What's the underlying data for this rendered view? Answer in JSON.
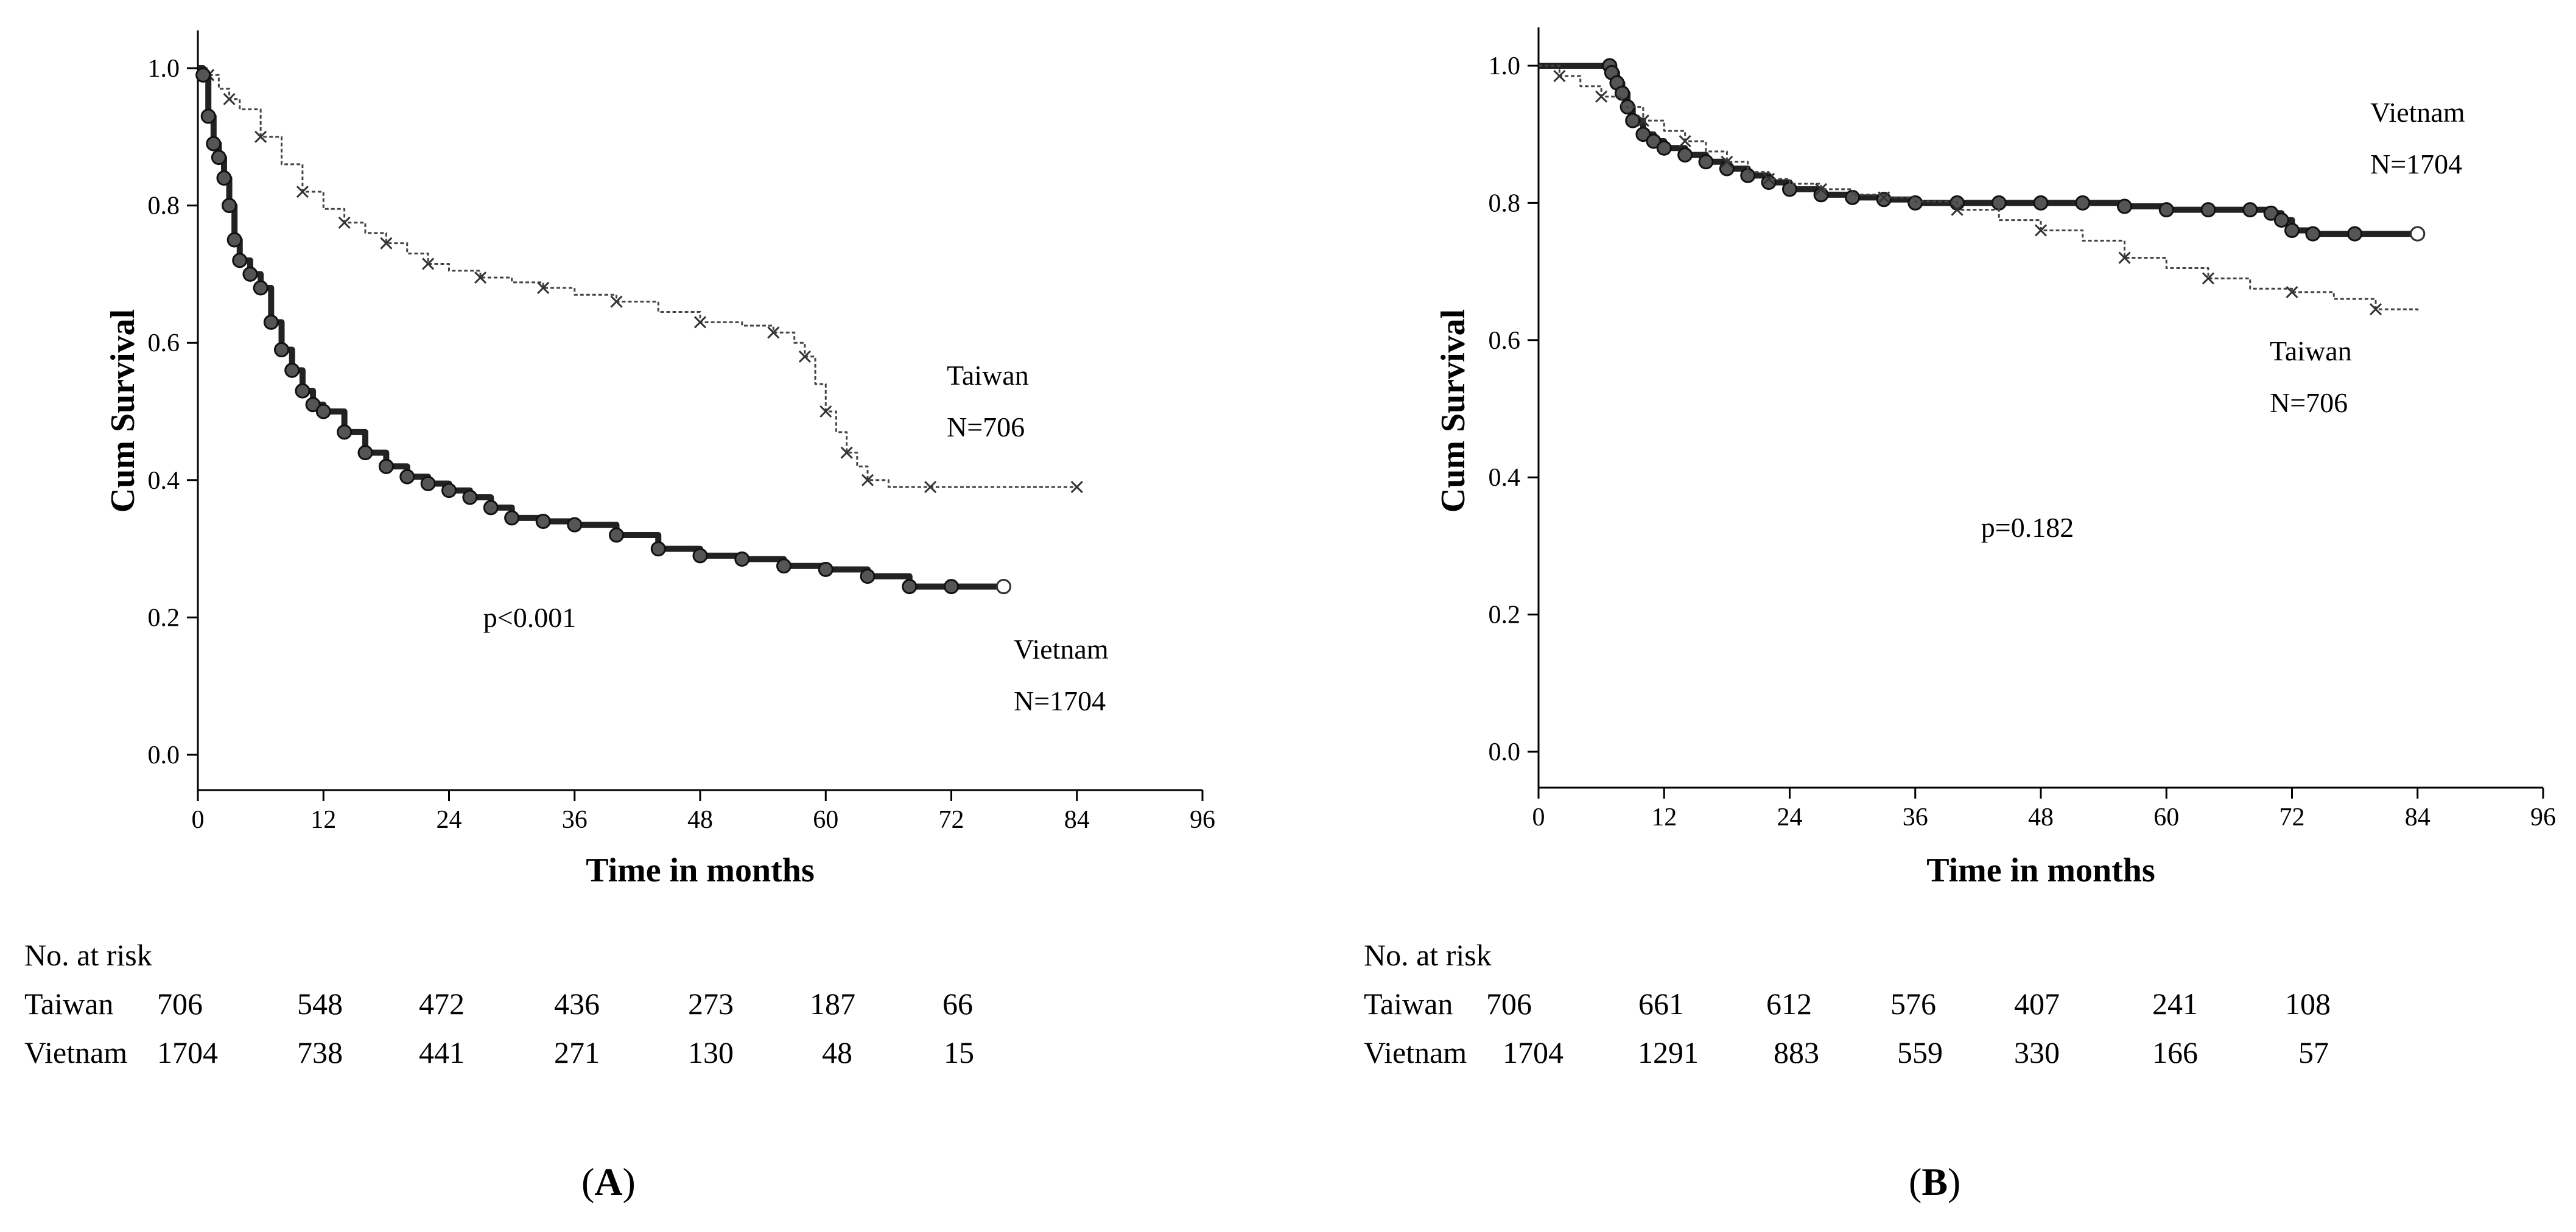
{
  "chart_data": [
    {
      "type": "line",
      "panel_label": "A",
      "xlabel": "Time in months",
      "ylabel": "Cum Survival",
      "xlim": [
        0,
        96
      ],
      "ylim": [
        0.0,
        1.0
      ],
      "xticks": [
        0,
        12,
        24,
        36,
        48,
        60,
        72,
        84,
        96
      ],
      "yticks": [
        "0.0",
        "0.2",
        "0.4",
        "0.6",
        "0.8",
        "1.0"
      ],
      "annotation": "p<0.001",
      "series": [
        {
          "name": "Taiwan",
          "n_label": "N=706",
          "style": "thin-cross",
          "x": [
            0,
            1,
            2,
            3,
            4,
            6,
            8,
            10,
            12,
            14,
            16,
            18,
            20,
            22,
            24,
            27,
            30,
            33,
            36,
            40,
            44,
            48,
            52,
            55,
            57,
            58,
            59,
            60,
            61,
            62,
            63,
            64,
            66,
            70,
            76,
            84
          ],
          "y": [
            1.0,
            0.99,
            0.97,
            0.955,
            0.94,
            0.9,
            0.86,
            0.82,
            0.795,
            0.775,
            0.76,
            0.745,
            0.73,
            0.715,
            0.705,
            0.695,
            0.688,
            0.68,
            0.67,
            0.66,
            0.645,
            0.63,
            0.625,
            0.615,
            0.6,
            0.58,
            0.54,
            0.5,
            0.47,
            0.44,
            0.42,
            0.4,
            0.39,
            0.39,
            0.39,
            0.39
          ]
        },
        {
          "name": "Vietnam",
          "n_label": "N=1704",
          "style": "thick-circle",
          "x": [
            0,
            0.5,
            1,
            1.5,
            2,
            2.5,
            3,
            3.5,
            4,
            5,
            6,
            7,
            8,
            9,
            10,
            11,
            12,
            14,
            16,
            18,
            20,
            22,
            24,
            26,
            28,
            30,
            33,
            36,
            40,
            44,
            48,
            52,
            56,
            60,
            64,
            68,
            72,
            77
          ],
          "y": [
            1.0,
            0.99,
            0.93,
            0.89,
            0.87,
            0.84,
            0.8,
            0.75,
            0.72,
            0.7,
            0.68,
            0.63,
            0.59,
            0.56,
            0.53,
            0.51,
            0.5,
            0.47,
            0.44,
            0.42,
            0.405,
            0.395,
            0.385,
            0.375,
            0.36,
            0.345,
            0.34,
            0.335,
            0.32,
            0.3,
            0.29,
            0.285,
            0.275,
            0.27,
            0.26,
            0.245,
            0.245,
            0.245
          ]
        }
      ],
      "risk_table": {
        "title": "No. at risk",
        "rows": [
          {
            "label": "Taiwan",
            "values": [
              "706",
              "548",
              "472",
              "436",
              "273",
              "187",
              "66"
            ]
          },
          {
            "label": "Vietnam",
            "values": [
              "1704",
              "738",
              "441",
              "271",
              "130",
              "48",
              "15"
            ]
          }
        ]
      }
    },
    {
      "type": "line",
      "panel_label": "B",
      "xlabel": "Time in months",
      "ylabel": "Cum Survival",
      "xlim": [
        0,
        96
      ],
      "ylim": [
        0.0,
        1.0
      ],
      "xticks": [
        0,
        12,
        24,
        36,
        48,
        60,
        72,
        84,
        96
      ],
      "yticks": [
        "0.0",
        "0.2",
        "0.4",
        "0.6",
        "0.8",
        "1.0"
      ],
      "annotation": "p=0.182",
      "series": [
        {
          "name": "Vietnam",
          "n_label": "N=1704",
          "style": "thick-circle",
          "x": [
            0,
            6.8,
            7,
            7.5,
            8,
            8.5,
            9,
            10,
            11,
            12,
            14,
            16,
            18,
            20,
            22,
            24,
            27,
            30,
            33,
            36,
            40,
            44,
            48,
            52,
            56,
            60,
            64,
            68,
            70,
            71,
            72,
            74,
            78,
            84
          ],
          "y": [
            1.0,
            1.0,
            0.99,
            0.975,
            0.96,
            0.94,
            0.92,
            0.9,
            0.89,
            0.88,
            0.87,
            0.86,
            0.85,
            0.84,
            0.83,
            0.82,
            0.812,
            0.808,
            0.805,
            0.8,
            0.8,
            0.8,
            0.8,
            0.8,
            0.795,
            0.79,
            0.79,
            0.79,
            0.785,
            0.775,
            0.76,
            0.755,
            0.755,
            0.755
          ]
        },
        {
          "name": "Taiwan",
          "n_label": "N=706",
          "style": "thin-cross",
          "x": [
            0,
            2,
            4,
            6,
            8,
            10,
            12,
            14,
            16,
            18,
            20,
            22,
            24,
            27,
            30,
            33,
            36,
            40,
            44,
            48,
            52,
            56,
            60,
            64,
            68,
            72,
            76,
            80,
            84
          ],
          "y": [
            1.0,
            0.985,
            0.97,
            0.955,
            0.94,
            0.92,
            0.905,
            0.89,
            0.875,
            0.86,
            0.845,
            0.835,
            0.828,
            0.82,
            0.812,
            0.808,
            0.802,
            0.79,
            0.775,
            0.76,
            0.745,
            0.72,
            0.705,
            0.69,
            0.675,
            0.67,
            0.66,
            0.645,
            0.64
          ]
        }
      ],
      "risk_table": {
        "title": "No. at risk",
        "rows": [
          {
            "label": "Taiwan",
            "values": [
              "706",
              "661",
              "612",
              "576",
              "407",
              "241",
              "108"
            ]
          },
          {
            "label": "Vietnam",
            "values": [
              "1704",
              "1291",
              "883",
              "559",
              "330",
              "166",
              "57"
            ]
          }
        ]
      }
    }
  ]
}
